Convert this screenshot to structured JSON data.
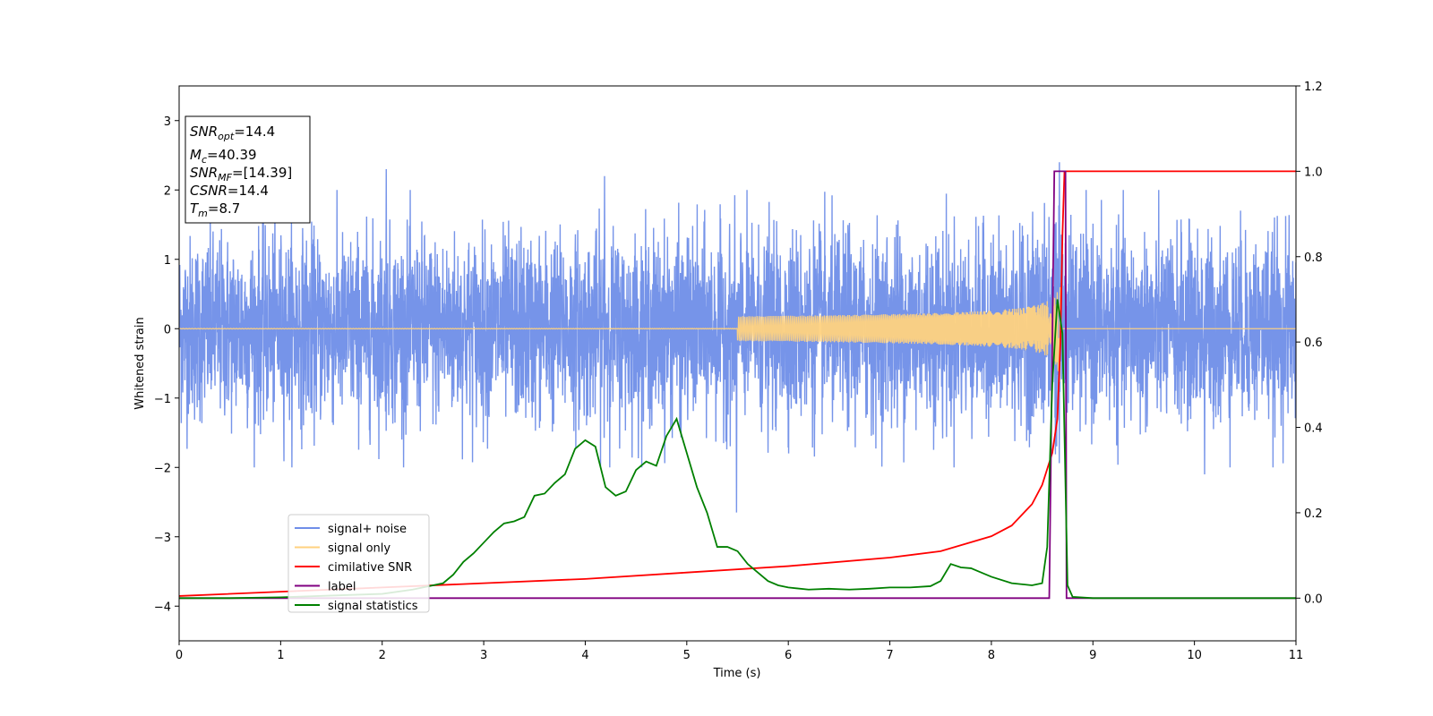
{
  "chart_data": {
    "type": "line",
    "xlabel": "Time (s)",
    "ylabel_left": "Whitened strain",
    "xlim": [
      0,
      11
    ],
    "ylim_left": [
      -4.5,
      3.5
    ],
    "ylim_right": [
      -0.1,
      1.2
    ],
    "x_ticks": [
      "0",
      "1",
      "2",
      "3",
      "4",
      "5",
      "6",
      "7",
      "8",
      "9",
      "10",
      "11"
    ],
    "y_ticks_left": [
      "−4",
      "−3",
      "−2",
      "−1",
      "0",
      "1",
      "2",
      "3"
    ],
    "y_ticks_right": [
      "0.0",
      "0.2",
      "0.4",
      "0.6",
      "0.8",
      "1.0",
      "1.2"
    ],
    "info_box": {
      "snr_opt": {
        "base": "SNR",
        "sub": "opt",
        "value": "=14.4"
      },
      "mc": {
        "base": "M",
        "sub": "c",
        "value": "=40.39"
      },
      "snr_mf": {
        "base": "SNR",
        "sub": "MF",
        "value": "=[14.39]"
      },
      "csnr": {
        "base": "CSNR",
        "sub": "",
        "value": "=14.4"
      },
      "tm": {
        "base": "T",
        "sub": "m",
        "value": "=8.7"
      }
    },
    "legend": {
      "position": "lower-left",
      "entries": [
        {
          "label": "signal+ noise",
          "color": "#6f8ee8"
        },
        {
          "label": "signal only",
          "color": "#ffd27f"
        },
        {
          "label": "cimilative SNR",
          "color": "#ff0000"
        },
        {
          "label": "label",
          "color": "#800080"
        },
        {
          "label": "signal statistics",
          "color": "#008000"
        }
      ]
    },
    "series": [
      {
        "name": "signal+ noise",
        "axis": "left",
        "color": "#6f8ee8",
        "kind": "noise",
        "merger_time": 8.68,
        "typical_amplitude": 1.2,
        "peak_values": [
          {
            "x": 2.04,
            "y": 2.3
          },
          {
            "x": 4.19,
            "y": 2.2
          },
          {
            "x": 5.49,
            "y": -2.65
          },
          {
            "x": 8.67,
            "y": 2.4
          },
          {
            "x": 10.1,
            "y": -2.1
          }
        ]
      },
      {
        "name": "signal only",
        "axis": "left",
        "color": "#ffd27f",
        "kind": "chirp",
        "merger_time": 8.68,
        "peak_amplitude": 1.0
      },
      {
        "name": "cimilative SNR",
        "axis": "right",
        "color": "#ff0000",
        "x": [
          0,
          1,
          2,
          3,
          4,
          5,
          6,
          7,
          7.5,
          8,
          8.2,
          8.4,
          8.5,
          8.6,
          8.65,
          8.68,
          8.7,
          8.72,
          11
        ],
        "y": [
          0.005,
          0.015,
          0.025,
          0.035,
          0.045,
          0.06,
          0.075,
          0.095,
          0.11,
          0.145,
          0.17,
          0.22,
          0.265,
          0.34,
          0.42,
          0.6,
          0.85,
          1.0,
          1.0
        ]
      },
      {
        "name": "label",
        "axis": "right",
        "color": "#800080",
        "x": [
          0,
          8.57,
          8.62,
          8.73,
          8.74,
          11
        ],
        "y": [
          0,
          0,
          1.0,
          1.0,
          0,
          0
        ]
      },
      {
        "name": "signal statistics",
        "axis": "right",
        "color": "#008000",
        "x": [
          0,
          0.5,
          1,
          1.5,
          2,
          2.3,
          2.6,
          2.7,
          2.8,
          2.9,
          3.0,
          3.1,
          3.2,
          3.3,
          3.4,
          3.5,
          3.6,
          3.7,
          3.8,
          3.9,
          4.0,
          4.1,
          4.2,
          4.3,
          4.4,
          4.5,
          4.6,
          4.7,
          4.8,
          4.9,
          5.0,
          5.1,
          5.2,
          5.3,
          5.4,
          5.5,
          5.6,
          5.7,
          5.8,
          5.9,
          6.0,
          6.2,
          6.4,
          6.6,
          6.8,
          7.0,
          7.2,
          7.4,
          7.5,
          7.6,
          7.7,
          7.8,
          7.9,
          8.0,
          8.2,
          8.4,
          8.5,
          8.55,
          8.6,
          8.65,
          8.7,
          8.75,
          8.8,
          9.0,
          10,
          11
        ],
        "y": [
          0.0,
          0.0,
          0.002,
          0.006,
          0.01,
          0.02,
          0.035,
          0.055,
          0.085,
          0.105,
          0.13,
          0.155,
          0.175,
          0.18,
          0.19,
          0.24,
          0.245,
          0.27,
          0.29,
          0.35,
          0.37,
          0.355,
          0.26,
          0.24,
          0.25,
          0.3,
          0.32,
          0.31,
          0.38,
          0.42,
          0.34,
          0.26,
          0.2,
          0.12,
          0.12,
          0.11,
          0.08,
          0.06,
          0.04,
          0.03,
          0.025,
          0.02,
          0.022,
          0.02,
          0.022,
          0.025,
          0.025,
          0.028,
          0.04,
          0.08,
          0.072,
          0.07,
          0.06,
          0.05,
          0.035,
          0.03,
          0.035,
          0.12,
          0.5,
          0.7,
          0.62,
          0.03,
          0.003,
          0.0,
          0.0,
          0.0
        ]
      }
    ]
  }
}
